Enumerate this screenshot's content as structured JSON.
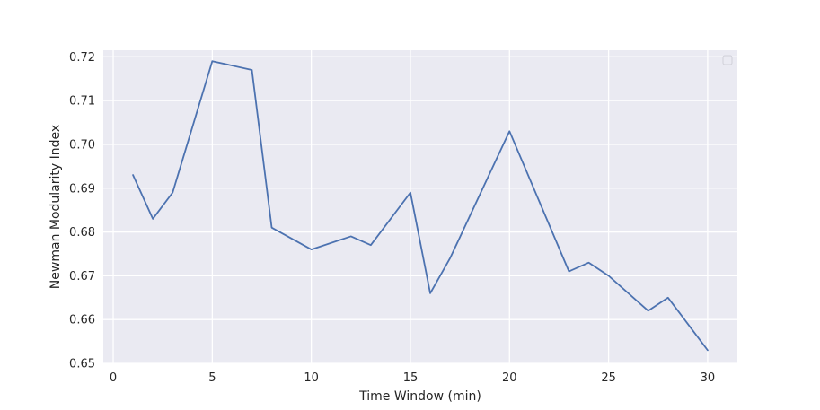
{
  "chart_data": {
    "type": "line",
    "title": "",
    "xlabel": "Time Window (min)",
    "ylabel": "Newman Modularity Index",
    "xlim": [
      -0.5,
      31.5
    ],
    "ylim": [
      0.65,
      0.7215
    ],
    "x_ticks": [
      0,
      5,
      10,
      15,
      20,
      25,
      30
    ],
    "y_ticks": [
      0.65,
      0.66,
      0.67,
      0.68,
      0.69,
      0.7,
      0.71,
      0.72
    ],
    "y_tick_labels": [
      "0.65",
      "0.66",
      "0.67",
      "0.68",
      "0.69",
      "0.70",
      "0.71",
      "0.72"
    ],
    "grid": true,
    "legend": "top-right",
    "series": [
      {
        "color": "#4c72b0",
        "x": [
          1,
          2,
          3,
          5,
          7,
          8,
          10,
          12,
          13,
          15,
          16,
          17,
          20,
          23,
          24,
          25,
          27,
          28,
          30
        ],
        "values": [
          0.693,
          0.683,
          0.689,
          0.719,
          0.717,
          0.681,
          0.676,
          0.679,
          0.677,
          0.689,
          0.666,
          0.674,
          0.703,
          0.671,
          0.673,
          0.67,
          0.662,
          0.665,
          0.653
        ]
      }
    ],
    "colors": {
      "plot_background": "#eaeaf2",
      "grid": "#ffffff",
      "text": "#262626"
    }
  }
}
